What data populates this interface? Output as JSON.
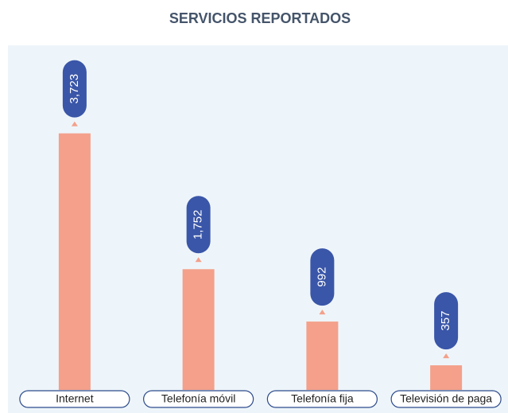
{
  "chart_data": {
    "type": "bar",
    "title": "SERVICIOS REPORTADOS",
    "categories": [
      "Internet",
      "Telefonía móvil",
      "Telefonía fija",
      "Televisión de paga"
    ],
    "values": [
      3723,
      1752,
      992,
      357
    ],
    "value_labels": [
      "3,723",
      "1,752",
      "992",
      "357"
    ],
    "color": "#f4a08a",
    "label_color": "#3a56a8",
    "ylim": [
      0,
      5000
    ]
  }
}
